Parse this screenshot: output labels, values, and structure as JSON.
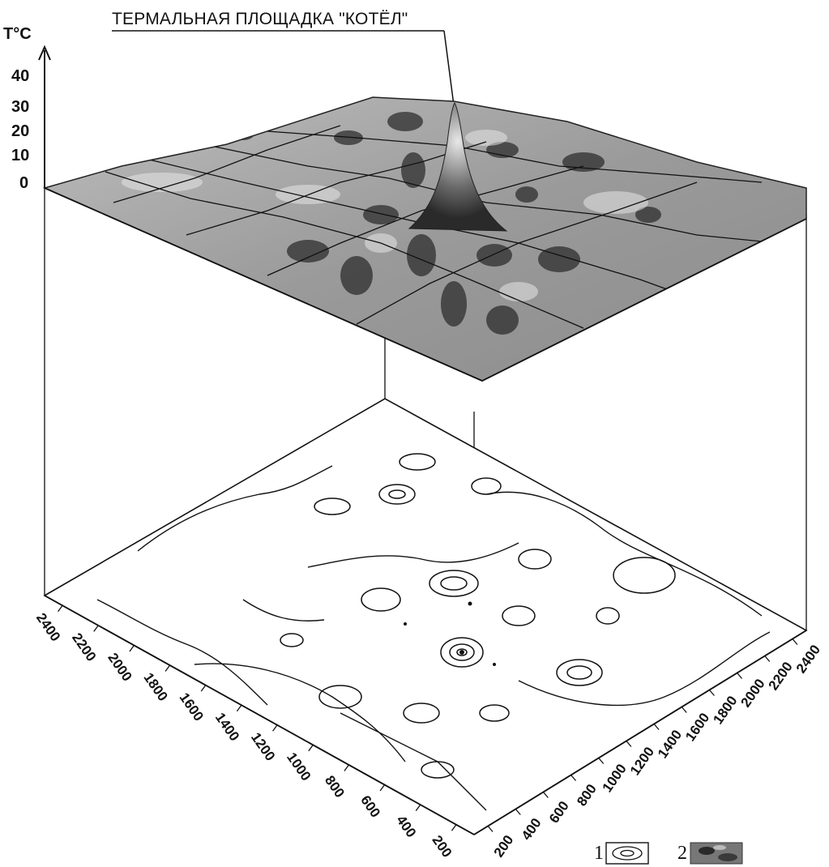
{
  "title": "ТЕРМАЛЬНАЯ ПЛОЩАДКА \"КОТЁЛ\"",
  "y_axis": {
    "unit": "T°C",
    "ticks": [
      "40",
      "30",
      "20",
      "10",
      "0"
    ]
  },
  "left_axis_ticks": [
    "2400",
    "2200",
    "2000",
    "1800",
    "1600",
    "1400",
    "1200",
    "1000",
    "800",
    "600",
    "400",
    "200"
  ],
  "right_axis_ticks": [
    "200",
    "400",
    "600",
    "800",
    "1000",
    "1200",
    "1400",
    "1600",
    "1800",
    "2000",
    "2200",
    "2400"
  ],
  "legend": [
    {
      "num": "1",
      "icon": "contour-lines-icon"
    },
    {
      "num": "2",
      "icon": "shaded-relief-icon"
    }
  ],
  "colors": {
    "surface_light": "#cfcfcf",
    "surface_dark": "#3a3a3a",
    "line": "#111111"
  }
}
